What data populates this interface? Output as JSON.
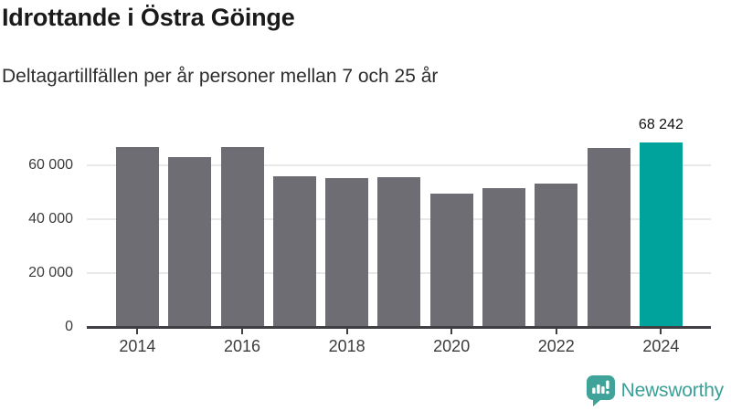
{
  "header": {
    "title": "Idrottande i Östra Göinge",
    "subtitle": "Deltagartillfällen per år personer mellan 7 och 25 år"
  },
  "chart_data": {
    "type": "bar",
    "title": "Idrottande i Östra Göinge",
    "subtitle": "Deltagartillfällen per år personer mellan 7 och 25 år",
    "xlabel": "",
    "ylabel": "",
    "categories": [
      2014,
      2015,
      2016,
      2017,
      2018,
      2019,
      2020,
      2021,
      2022,
      2023,
      2024
    ],
    "values": [
      66700,
      63000,
      66700,
      55700,
      55000,
      55300,
      49500,
      51400,
      53100,
      66100,
      68242
    ],
    "highlight_index": 10,
    "highlight_label": "68 242",
    "bar_color": "#6e6d73",
    "highlight_color": "#00a39c",
    "ytick_values": [
      0,
      20000,
      40000,
      60000
    ],
    "ytick_labels": [
      "0",
      "20 000",
      "40 000",
      "60 000"
    ],
    "xtick_indices": [
      0,
      2,
      4,
      6,
      8,
      10
    ],
    "xtick_labels": [
      "2014",
      "2016",
      "2018",
      "2020",
      "2022",
      "2024"
    ],
    "ylim": [
      0,
      74000
    ],
    "grid": true,
    "legend": "none"
  },
  "footer": {
    "brand": "Newsworthy",
    "brand_color": "#3aa096",
    "logo_icon": "bar-chart-speech-bubble-icon"
  }
}
